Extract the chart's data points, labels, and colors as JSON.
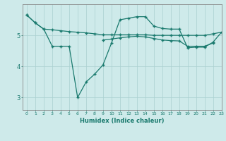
{
  "x": [
    0,
    1,
    2,
    3,
    4,
    5,
    6,
    7,
    8,
    9,
    10,
    11,
    12,
    13,
    14,
    15,
    16,
    17,
    18,
    19,
    20,
    21,
    22,
    23
  ],
  "line_top": [
    5.65,
    5.4,
    5.2,
    5.18,
    5.15,
    5.12,
    5.1,
    5.08,
    5.05,
    5.02,
    5.02,
    5.02,
    5.02,
    5.02,
    5.02,
    5.0,
    5.0,
    5.0,
    5.0,
    5.0,
    5.0,
    5.0,
    5.05,
    5.1
  ],
  "line_dip": [
    5.65,
    5.4,
    5.2,
    4.65,
    4.65,
    4.65,
    3.0,
    3.5,
    3.75,
    4.05,
    4.75,
    5.5,
    5.55,
    5.6,
    5.6,
    5.3,
    5.22,
    5.2,
    5.2,
    4.6,
    4.62,
    4.62,
    4.78,
    5.1
  ],
  "line_mid": [
    null,
    null,
    null,
    null,
    null,
    null,
    null,
    null,
    null,
    4.85,
    4.88,
    4.92,
    4.95,
    4.97,
    4.95,
    4.9,
    4.85,
    4.83,
    4.82,
    4.65,
    4.65,
    4.65,
    4.75,
    null
  ],
  "bgcolor": "#ceeaea",
  "gridcolor": "#aad0d0",
  "linecolor": "#1a7a6e",
  "spinecolor": "#888888",
  "xlabel": "Humidex (Indice chaleur)",
  "yticks": [
    3,
    4,
    5
  ],
  "ylim": [
    2.6,
    6.0
  ],
  "xlim": [
    -0.5,
    23
  ],
  "figw": 3.2,
  "figh": 2.0,
  "dpi": 100
}
